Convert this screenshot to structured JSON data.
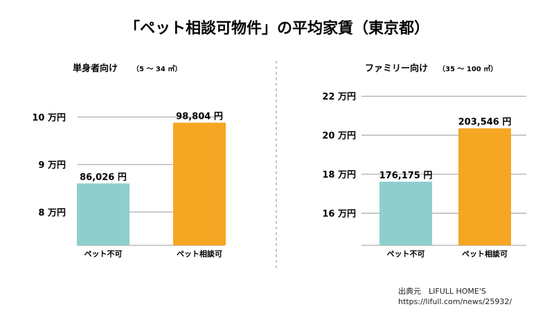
{
  "page": {
    "title": "「ペット相談可物件」の平均家賃（東京都）",
    "source_line1": "出典元　LIFULL HOME'S",
    "source_line2": "https://lifull.com/news/25932/"
  },
  "colors": {
    "pet_not_allowed": "#8ecfce",
    "pet_allowed": "#f5a623",
    "grid": "#9a9a9a",
    "divider": "#888888"
  },
  "chart_data": [
    {
      "type": "bar",
      "title": "単身者向け",
      "subtitle": "（5 ～ 34 ㎡）",
      "categories": [
        "ペット不可",
        "ペット相談可"
      ],
      "values": [
        86026,
        98804
      ],
      "value_labels": [
        "86,026 円",
        "98,804 円"
      ],
      "yticks": [
        80000,
        90000,
        100000
      ],
      "ytick_labels": [
        "8 万円",
        "9 万円",
        "10 万円"
      ],
      "ylim": [
        73000,
        102800
      ],
      "grid": true
    },
    {
      "type": "bar",
      "title": "ファミリー向け",
      "subtitle": "（35 ～ 100 ㎡）",
      "categories": [
        "ペット不可",
        "ペット相談可"
      ],
      "values": [
        176175,
        203546
      ],
      "value_labels": [
        "176,175 円",
        "203,546 円"
      ],
      "yticks": [
        160000,
        180000,
        200000,
        220000
      ],
      "ytick_labels": [
        "16 万円",
        "18 万円",
        "20 万円",
        "22 万円"
      ],
      "ylim": [
        143500,
        221500
      ],
      "grid": true
    }
  ]
}
